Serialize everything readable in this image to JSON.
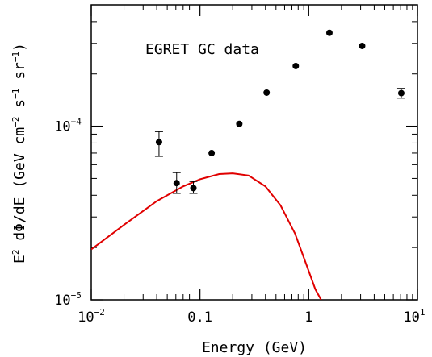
{
  "chart_data": {
    "type": "scatter",
    "title": "",
    "annotation": "EGRET GC data",
    "xlabel": "Energy (GeV)",
    "ylabel": {
      "main": "E",
      "main_sup": "2",
      "mid": " dΦ/dE (GeV cm",
      "sup1": "−2",
      "mid2": " s",
      "sup2": "−1",
      "mid3": " sr",
      "sup3": "−1",
      "end": ")"
    },
    "xscale": "log",
    "yscale": "log",
    "xlim": [
      0.01,
      10
    ],
    "ylim": [
      1e-05,
      0.0005
    ],
    "x_ticks": [
      {
        "value": 0.01,
        "base": "10",
        "exp": "−2"
      },
      {
        "value": 0.1,
        "base": "0.1",
        "exp": ""
      },
      {
        "value": 1,
        "base": "1",
        "exp": ""
      },
      {
        "value": 10,
        "base": "10",
        "exp": "1"
      }
    ],
    "y_ticks": [
      {
        "value": 1e-05,
        "base": "10",
        "exp": "−5"
      },
      {
        "value": 0.0001,
        "base": "10",
        "exp": "−4"
      }
    ],
    "series": [
      {
        "type": "scatter",
        "color": "#000000",
        "points": [
          {
            "x": 0.042,
            "y": 8.1e-05,
            "ylo": 6.7e-05,
            "yhi": 9.3e-05
          },
          {
            "x": 0.061,
            "y": 4.7e-05,
            "ylo": 4.1e-05,
            "yhi": 5.4e-05
          },
          {
            "x": 0.087,
            "y": 4.4e-05,
            "ylo": 4.1e-05,
            "yhi": 4.8e-05
          },
          {
            "x": 0.128,
            "y": 7e-05,
            "ylo": 6.7e-05,
            "yhi": 7.3e-05
          },
          {
            "x": 0.23,
            "y": 0.000103,
            "ylo": 0.0001,
            "yhi": 0.000106
          },
          {
            "x": 0.41,
            "y": 0.000156,
            "ylo": 0.000151,
            "yhi": 0.000161
          },
          {
            "x": 0.76,
            "y": 0.000222,
            "ylo": 0.000216,
            "yhi": 0.000228
          },
          {
            "x": 1.55,
            "y": 0.000345,
            "ylo": 0.000338,
            "yhi": 0.000352
          },
          {
            "x": 3.1,
            "y": 0.00029,
            "ylo": 0.000282,
            "yhi": 0.000298
          },
          {
            "x": 7.1,
            "y": 0.000155,
            "ylo": 0.000145,
            "yhi": 0.000165
          }
        ]
      },
      {
        "type": "line",
        "color": "#e00000",
        "points": [
          {
            "x": 0.01,
            "y": 1.95e-05
          },
          {
            "x": 0.02,
            "y": 2.7e-05
          },
          {
            "x": 0.04,
            "y": 3.7e-05
          },
          {
            "x": 0.07,
            "y": 4.5e-05
          },
          {
            "x": 0.1,
            "y": 4.95e-05
          },
          {
            "x": 0.15,
            "y": 5.3e-05
          },
          {
            "x": 0.2,
            "y": 5.35e-05
          },
          {
            "x": 0.28,
            "y": 5.2e-05
          },
          {
            "x": 0.4,
            "y": 4.5e-05
          },
          {
            "x": 0.55,
            "y": 3.5e-05
          },
          {
            "x": 0.75,
            "y": 2.4e-05
          },
          {
            "x": 0.95,
            "y": 1.6e-05
          },
          {
            "x": 1.15,
            "y": 1.15e-05
          },
          {
            "x": 1.3,
            "y": 1e-05
          }
        ]
      }
    ]
  }
}
